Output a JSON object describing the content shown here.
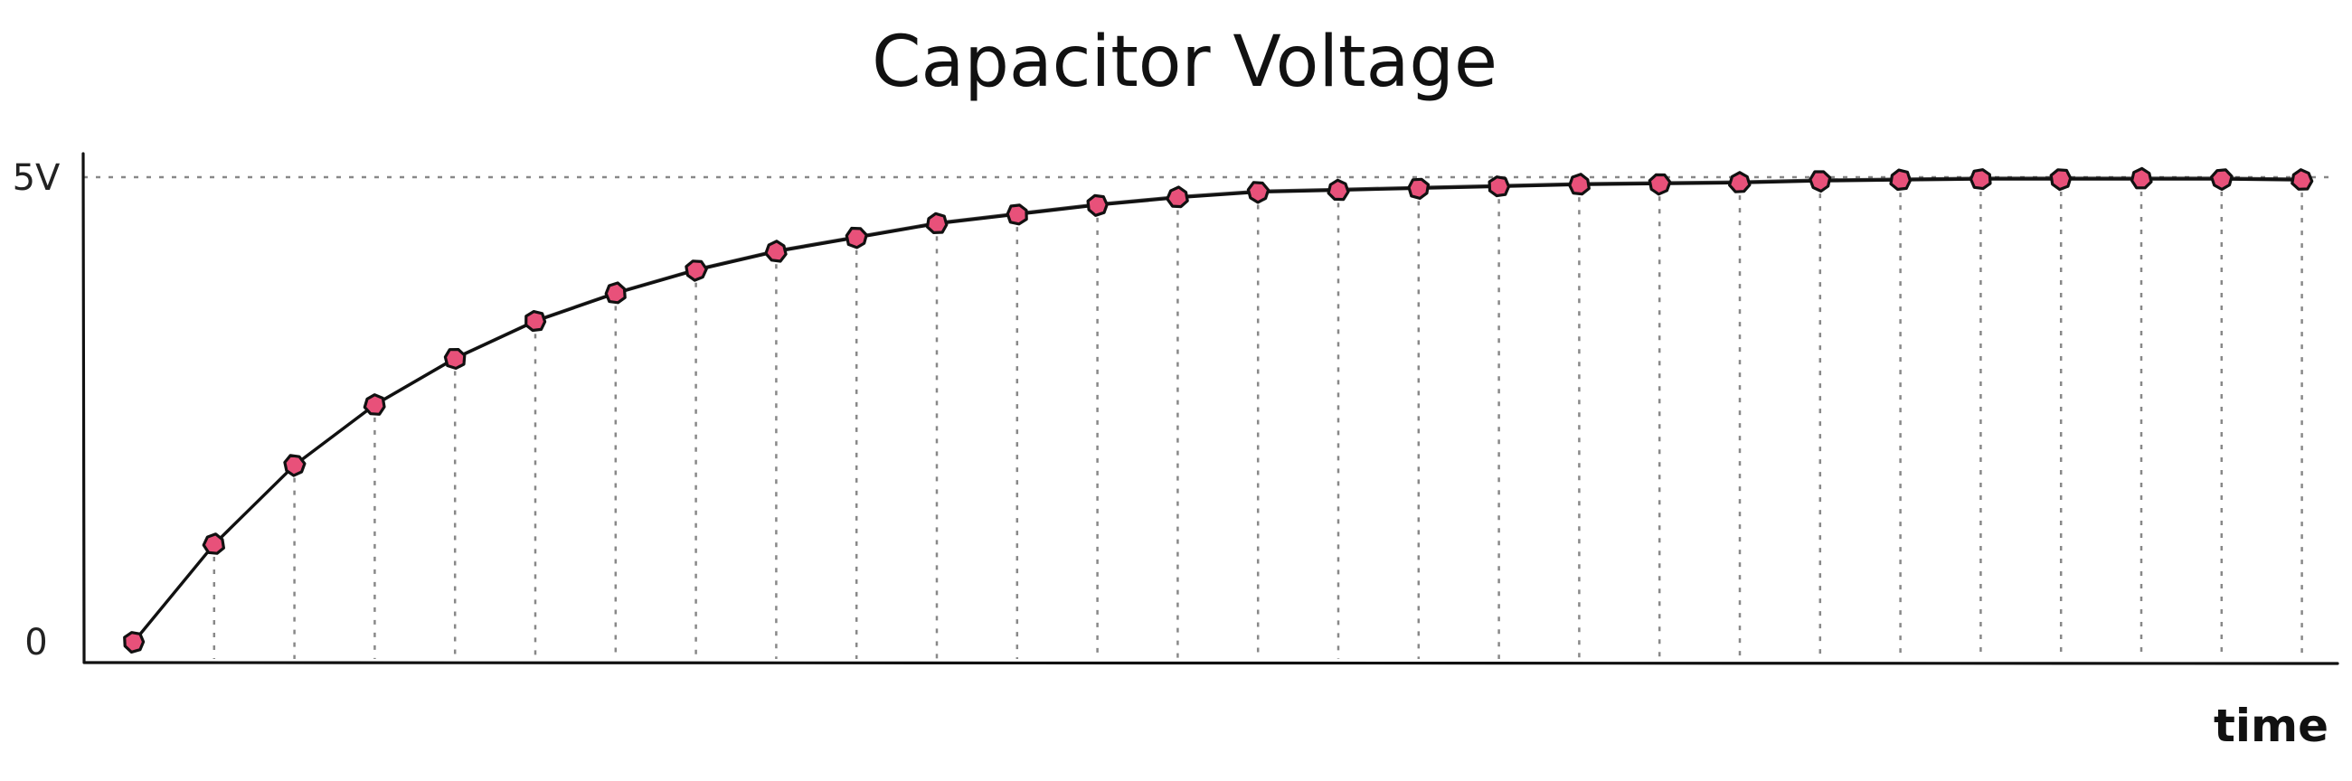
{
  "chart_data": {
    "type": "line",
    "title": "Capacitor Voltage",
    "xlabel": "time",
    "ylabel": "",
    "ylim": [
      0,
      5
    ],
    "y_ticks": [
      {
        "value": 0,
        "label": "0"
      },
      {
        "value": 5,
        "label": "5V"
      }
    ],
    "x": [
      0,
      1,
      2,
      3,
      4,
      5,
      6,
      7,
      8,
      9,
      10,
      11,
      12,
      13,
      14,
      15,
      16,
      17,
      18,
      19,
      20,
      21,
      22,
      23,
      24,
      25,
      26,
      27
    ],
    "series": [
      {
        "values": [
          0.0,
          1.05,
          1.9,
          2.55,
          3.05,
          3.45,
          3.75,
          4.0,
          4.2,
          4.35,
          4.5,
          4.6,
          4.7,
          4.78,
          4.84,
          4.86,
          4.88,
          4.9,
          4.92,
          4.93,
          4.94,
          4.96,
          4.97,
          4.98,
          4.98,
          4.98,
          4.98,
          4.97
        ]
      }
    ],
    "reference_line": {
      "value": 5,
      "style": "dotted"
    },
    "drop_lines": "dotted vertical lines from each point to the x-axis",
    "grid": false,
    "legend": "none",
    "colors": {
      "marker_fill": "#e8517a",
      "marker_stroke": "#111111",
      "line": "#111111",
      "guide_lines": "#888888"
    }
  }
}
